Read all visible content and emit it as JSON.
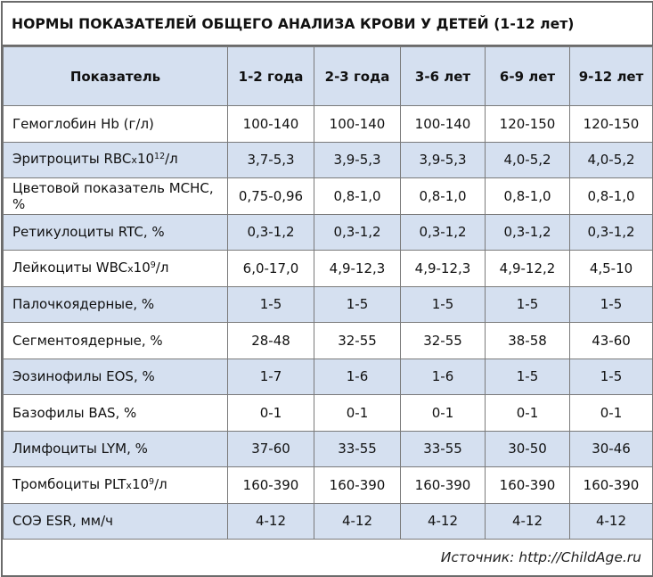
{
  "title": "НОРМЫ ПОКАЗАТЕЛЕЙ ОБЩЕГО АНАЛИЗА КРОВИ У ДЕТЕЙ  (1-12 лет)",
  "table": {
    "header": {
      "param": "Показатель",
      "ages": [
        "1-2 года",
        "2-3 года",
        "3-6 лет",
        "6-9 лет",
        "9-12 лет"
      ]
    },
    "rows": [
      {
        "label": "Гемоглобин Hb (г/л)",
        "values": [
          "100-140",
          "100-140",
          "100-140",
          "120-150",
          "120-150"
        ]
      },
      {
        "label_pre": "Эритроциты RBC",
        "times": "x",
        "label_base": "10",
        "label_sup": "12",
        "label_post": "/л",
        "values": [
          "3,7-5,3",
          "3,9-5,3",
          "3,9-5,3",
          "4,0-5,2",
          "4,0-5,2"
        ]
      },
      {
        "label": "Цветовой показатель МСНС, %",
        "values": [
          "0,75-0,96",
          "0,8-1,0",
          "0,8-1,0",
          "0,8-1,0",
          "0,8-1,0"
        ]
      },
      {
        "label": "Ретикулоциты RTC, %",
        "values": [
          "0,3-1,2",
          "0,3-1,2",
          "0,3-1,2",
          "0,3-1,2",
          "0,3-1,2"
        ]
      },
      {
        "label_pre": "Лейкоциты WBC",
        "times": "x",
        "label_base": "10",
        "label_sup": "9",
        "label_post": "/л",
        "values": [
          "6,0-17,0",
          "4,9-12,3",
          "4,9-12,3",
          "4,9-12,2",
          "4,5-10"
        ]
      },
      {
        "label": "Палочкоядерные, %",
        "values": [
          "1-5",
          "1-5",
          "1-5",
          "1-5",
          "1-5"
        ]
      },
      {
        "label": "Сегментоядерные, %",
        "values": [
          "28-48",
          "32-55",
          "32-55",
          "38-58",
          "43-60"
        ]
      },
      {
        "label": "Эозинофилы EOS, %",
        "values": [
          "1-7",
          "1-6",
          "1-6",
          "1-5",
          "1-5"
        ]
      },
      {
        "label": "Базофилы BAS, %",
        "values": [
          "0-1",
          "0-1",
          "0-1",
          "0-1",
          "0-1"
        ]
      },
      {
        "label": "Лимфоциты LYM, %",
        "values": [
          "37-60",
          "33-55",
          "33-55",
          "30-50",
          "30-46"
        ]
      },
      {
        "label_pre": "Тромбоциты PLT",
        "times": "x",
        "label_base": "10",
        "label_sup": "9",
        "label_post": "/л",
        "values": [
          "160-390",
          "160-390",
          "160-390",
          "160-390",
          "160-390"
        ]
      },
      {
        "label": "СОЭ ESR, мм/ч",
        "values": [
          "4-12",
          "4-12",
          "4-12",
          "4-12",
          "4-12"
        ]
      }
    ]
  },
  "footer": "Источник:  http://ChildAge.ru",
  "colors": {
    "row_blue": "#d5e0f0",
    "row_white": "#ffffff",
    "border": "#7a7a7a"
  }
}
